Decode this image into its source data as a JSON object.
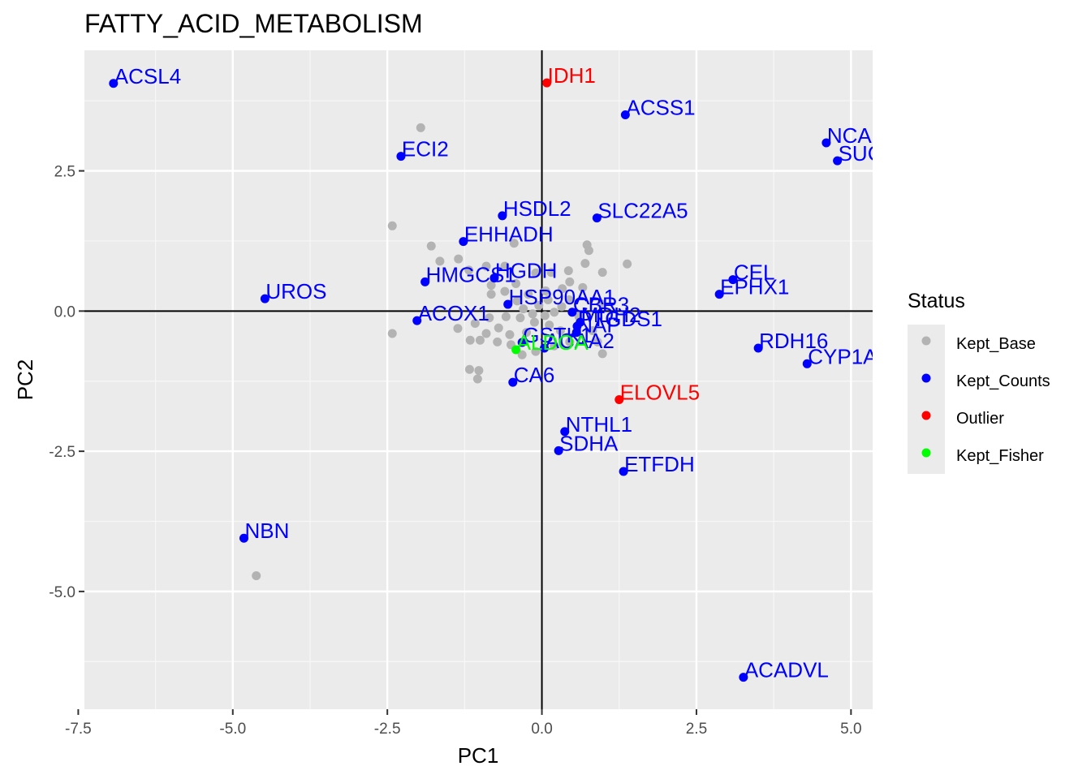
{
  "chart_data": {
    "type": "scatter",
    "title": "FATTY_ACID_METABOLISM",
    "xlabel": "PC1",
    "ylabel": "PC2",
    "xlim": [
      -7.4,
      5.35
    ],
    "ylim": [
      -7.1,
      4.65
    ],
    "x_ticks": [
      -7.5,
      -5.0,
      -2.5,
      0.0,
      2.5,
      5.0
    ],
    "x_tick_labels": [
      "-7.5",
      "-5.0",
      "-2.5",
      "0.0",
      "2.5",
      "5.0"
    ],
    "y_ticks": [
      -5.0,
      -2.5,
      0.0,
      2.5
    ],
    "y_tick_labels": [
      "-5.0",
      "-2.5",
      "0.0",
      "2.5"
    ],
    "grid": true,
    "reference_lines": {
      "x": 0,
      "y": 0
    },
    "legend": {
      "title": "Status",
      "position": "right",
      "entries": [
        {
          "name": "Kept_Base",
          "color": "#b3b3b3"
        },
        {
          "name": "Kept_Counts",
          "color": "#0000ff"
        },
        {
          "name": "Outlier",
          "color": "#ff0000"
        },
        {
          "name": "Kept_Fisher",
          "color": "#00ff00"
        }
      ]
    },
    "colors": {
      "Kept_Base": "#b3b3b3",
      "Kept_Counts": "#0000ff",
      "Outlier": "#ff0000",
      "Kept_Fisher": "#00ff00"
    },
    "labeled_points": [
      {
        "label": "ACSL4",
        "x": -6.93,
        "y": 4.06,
        "status": "Kept_Counts"
      },
      {
        "label": "IDH1",
        "x": 0.08,
        "y": 4.07,
        "status": "Outlier"
      },
      {
        "label": "ACSS1",
        "x": 1.35,
        "y": 3.5,
        "status": "Kept_Counts"
      },
      {
        "label": "NCA",
        "x": 4.6,
        "y": 3.0,
        "status": "Kept_Counts"
      },
      {
        "label": "SUC",
        "x": 4.78,
        "y": 2.68,
        "status": "Kept_Counts"
      },
      {
        "label": "ECI2",
        "x": -2.28,
        "y": 2.76,
        "status": "Kept_Counts"
      },
      {
        "label": "HSDL2",
        "x": -0.64,
        "y": 1.7,
        "status": "Kept_Counts"
      },
      {
        "label": "SLC22A5",
        "x": 0.89,
        "y": 1.66,
        "status": "Kept_Counts"
      },
      {
        "label": "EHHADH",
        "x": -1.27,
        "y": 1.24,
        "status": "Kept_Counts"
      },
      {
        "label": "CEL",
        "x": 3.09,
        "y": 0.56,
        "status": "Kept_Counts"
      },
      {
        "label": "EPHX1",
        "x": 2.87,
        "y": 0.3,
        "status": "Kept_Counts"
      },
      {
        "label": "HMGCS1",
        "x": -1.89,
        "y": 0.52,
        "status": "Kept_Counts"
      },
      {
        "label": "HGDH",
        "x": -0.77,
        "y": 0.59,
        "status": "Kept_Counts"
      },
      {
        "label": "UROS",
        "x": -4.48,
        "y": 0.22,
        "status": "Kept_Counts"
      },
      {
        "label": "HSP90AA1",
        "x": -0.55,
        "y": 0.12,
        "status": "Kept_Counts"
      },
      {
        "label": "CBR3",
        "x": 0.49,
        "y": -0.02,
        "status": "Kept_Counts"
      },
      {
        "label": "MDH2",
        "x": 0.62,
        "y": -0.2,
        "status": "Kept_Counts"
      },
      {
        "label": "ACOX1",
        "x": -2.02,
        "y": -0.17,
        "status": "Kept_Counts"
      },
      {
        "label": "PTGDS1",
        "x": 0.57,
        "y": -0.27,
        "status": "Kept_Counts"
      },
      {
        "label": "NAP",
        "x": 0.56,
        "y": -0.38,
        "status": "Kept_Counts"
      },
      {
        "label": "GSTK1",
        "x": -0.32,
        "y": -0.56,
        "status": "Kept_Counts"
      },
      {
        "label": "ACAA2",
        "x": 0.04,
        "y": -0.66,
        "status": "Kept_Counts"
      },
      {
        "label": "ALDOA",
        "x": -0.42,
        "y": -0.69,
        "status": "Kept_Fisher"
      },
      {
        "label": "RDH16",
        "x": 3.5,
        "y": -0.66,
        "status": "Kept_Counts"
      },
      {
        "label": "CYP1A",
        "x": 4.29,
        "y": -0.94,
        "status": "Kept_Counts"
      },
      {
        "label": "CA6",
        "x": -0.47,
        "y": -1.27,
        "status": "Kept_Counts"
      },
      {
        "label": "ELOVL5",
        "x": 1.25,
        "y": -1.58,
        "status": "Outlier"
      },
      {
        "label": "NTHL1",
        "x": 0.37,
        "y": -2.15,
        "status": "Kept_Counts"
      },
      {
        "label": "SDHA",
        "x": 0.27,
        "y": -2.49,
        "status": "Kept_Counts"
      },
      {
        "label": "ETFDH",
        "x": 1.32,
        "y": -2.86,
        "status": "Kept_Counts"
      },
      {
        "label": "NBN",
        "x": -4.82,
        "y": -4.05,
        "status": "Kept_Counts"
      },
      {
        "label": "ACADVL",
        "x": 3.26,
        "y": -6.53,
        "status": "Kept_Counts"
      }
    ],
    "base_points": [
      [
        -1.96,
        3.27
      ],
      [
        -2.42,
        1.52
      ],
      [
        -1.79,
        1.16
      ],
      [
        -1.65,
        0.89
      ],
      [
        -1.35,
        0.93
      ],
      [
        -1.18,
        0.73
      ],
      [
        -0.45,
        1.21
      ],
      [
        -0.6,
        0.8
      ],
      [
        -0.9,
        0.8
      ],
      [
        -0.82,
        0.46
      ],
      [
        -0.42,
        0.49
      ],
      [
        -0.1,
        0.68
      ],
      [
        0.15,
        0.69
      ],
      [
        0.43,
        0.72
      ],
      [
        0.73,
        1.18
      ],
      [
        0.76,
        1.08
      ],
      [
        0.7,
        0.85
      ],
      [
        0.98,
        0.69
      ],
      [
        1.38,
        0.84
      ],
      [
        0.66,
        0.42
      ],
      [
        0.33,
        0.4
      ],
      [
        -0.22,
        0.3
      ],
      [
        0.06,
        0.36
      ],
      [
        0.44,
        0.2
      ],
      [
        0.96,
        0.13
      ],
      [
        -0.82,
        0.3
      ],
      [
        -0.6,
        0.35
      ],
      [
        -0.4,
        0.18
      ],
      [
        -0.3,
        0.04
      ],
      [
        -0.15,
        -0.05
      ],
      [
        0.05,
        -0.08
      ],
      [
        0.2,
        -0.02
      ],
      [
        0.32,
        0.08
      ],
      [
        0.1,
        0.2
      ],
      [
        -0.05,
        0.1
      ],
      [
        -0.58,
        -0.1
      ],
      [
        -0.35,
        -0.12
      ],
      [
        -0.12,
        -0.2
      ],
      [
        0.12,
        -0.25
      ],
      [
        0.3,
        -0.35
      ],
      [
        -1.36,
        -0.31
      ],
      [
        -1.08,
        -0.22
      ],
      [
        -0.9,
        -0.4
      ],
      [
        -0.7,
        -0.3
      ],
      [
        -0.52,
        -0.42
      ],
      [
        -0.25,
        -0.38
      ],
      [
        -0.5,
        -0.6
      ],
      [
        -0.72,
        -0.55
      ],
      [
        -0.32,
        -0.78
      ],
      [
        -0.1,
        -0.72
      ],
      [
        0.2,
        -0.62
      ],
      [
        0.45,
        -0.55
      ],
      [
        0.82,
        -0.35
      ],
      [
        0.98,
        -0.76
      ],
      [
        0.6,
        -0.1
      ],
      [
        -1.16,
        -0.52
      ],
      [
        -1.0,
        -0.52
      ],
      [
        -1.17,
        -1.04
      ],
      [
        -1.02,
        -1.06
      ],
      [
        -1.04,
        -1.21
      ],
      [
        -2.42,
        -0.4
      ],
      [
        -4.62,
        -4.72
      ],
      [
        0.9,
        -0.55
      ],
      [
        -0.85,
        -0.12
      ],
      [
        0.45,
        0.52
      ]
    ]
  }
}
